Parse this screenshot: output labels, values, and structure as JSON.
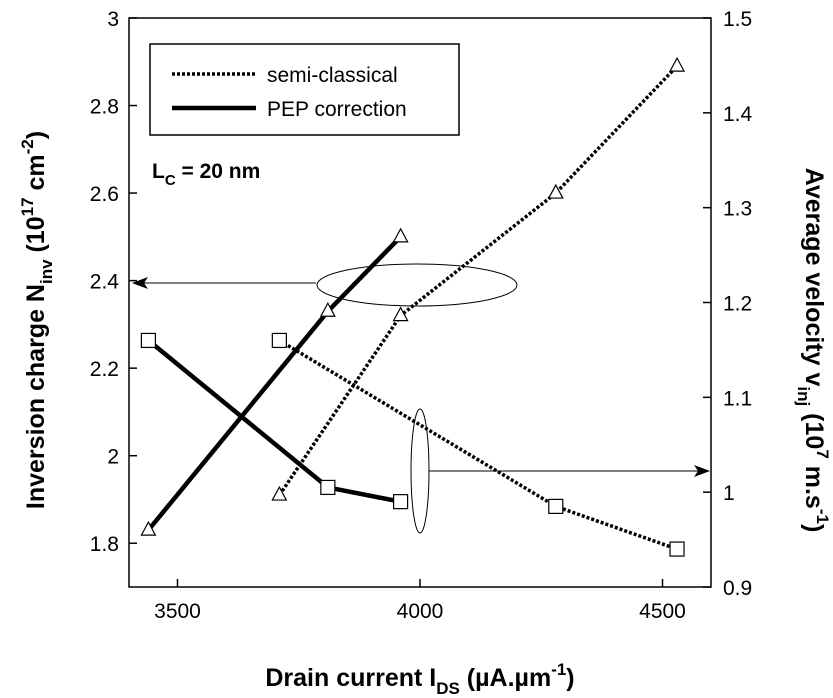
{
  "chart_data": {
    "type": "line",
    "x_axis": {
      "label_main": "Drain current  I",
      "label_sub": "DS",
      "label_tail": " (µA.µm",
      "label_sup": "-1",
      "label_end": ")",
      "range": [
        3400,
        4600
      ],
      "ticks": [
        "3500",
        "4000",
        "4500"
      ]
    },
    "y_left": {
      "label_main": "Inversion charge N",
      "label_sub": "inv",
      "label_tail": "  (10",
      "label_sup": "17",
      "label_tail2": " cm",
      "label_sup2": "-2",
      "label_end": ")",
      "range": [
        1.7,
        3.0
      ],
      "ticks": [
        "1.8",
        "2",
        "2.2",
        "2.4",
        "2.6",
        "2.8",
        "3"
      ]
    },
    "y_right": {
      "label_main": "Average velocity v",
      "label_sub": "inj",
      "label_tail": "  (10",
      "label_sup": "7",
      "label_tail2": " m.s",
      "label_sup2": "-1",
      "label_end": ")",
      "range": [
        0.9,
        1.5
      ],
      "ticks": [
        "0.9",
        "1",
        "1.1",
        "1.2",
        "1.3",
        "1.4",
        "1.5"
      ]
    },
    "legend": {
      "placement": "top-left",
      "items": [
        {
          "label": "semi-classical",
          "style": "dotted"
        },
        {
          "label": "PEP correction",
          "style": "solid"
        }
      ]
    },
    "annotation": {
      "main": "L",
      "sub": "C",
      "tail": " = 20 nm"
    },
    "series": [
      {
        "style": "dotted",
        "marker": "triangle",
        "axis": "left",
        "points": [
          [
            3710,
            1.91
          ],
          [
            3960,
            2.32
          ],
          [
            4280,
            2.6
          ],
          [
            4530,
            2.89
          ]
        ]
      },
      {
        "style": "dotted",
        "marker": "square",
        "axis": "right",
        "points": [
          [
            3710,
            1.16
          ],
          [
            4280,
            0.985
          ],
          [
            4530,
            0.94
          ]
        ]
      },
      {
        "style": "solid",
        "marker": "triangle",
        "axis": "left",
        "points": [
          [
            3440,
            1.83
          ],
          [
            3810,
            2.33
          ],
          [
            3960,
            2.5
          ]
        ]
      },
      {
        "style": "solid",
        "marker": "square",
        "axis": "right",
        "points": [
          [
            3440,
            1.16
          ],
          [
            3810,
            1.005
          ],
          [
            3960,
            0.99
          ]
        ]
      }
    ],
    "grid": false,
    "colors": {
      "line": "#000000",
      "marker_fill": "#ffffff",
      "background": "#ffffff"
    }
  }
}
